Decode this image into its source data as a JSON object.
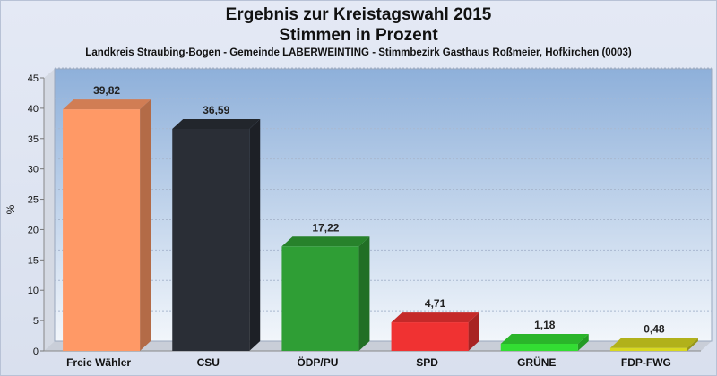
{
  "chart_data": {
    "type": "bar",
    "title": "Ergebnis zur Kreistagswahl 2015",
    "subtitle": "Stimmen in Prozent",
    "caption": "Landkreis Straubing-Bogen - Gemeinde LABERWEINTING - Stimmbezirk Gasthaus Roßmeier, Hofkirchen (0003)",
    "ylabel": "%",
    "xlabel": "",
    "ylim": [
      0,
      45
    ],
    "yticks": [
      0,
      5,
      10,
      15,
      20,
      25,
      30,
      35,
      40,
      45
    ],
    "grid": true,
    "categories": [
      "Freie Wähler",
      "CSU",
      "ÖDP/PU",
      "SPD",
      "GRÜNE",
      "FDP-FWG"
    ],
    "values": [
      39.82,
      36.59,
      17.22,
      4.71,
      1.18,
      0.48
    ],
    "value_labels": [
      "39,82",
      "36,59",
      "17,22",
      "4,71",
      "1,18",
      "0,48"
    ],
    "colors": [
      "#ff9966",
      "#2a2e36",
      "#2f9e35",
      "#f03232",
      "#33dd33",
      "#d8d820"
    ]
  }
}
